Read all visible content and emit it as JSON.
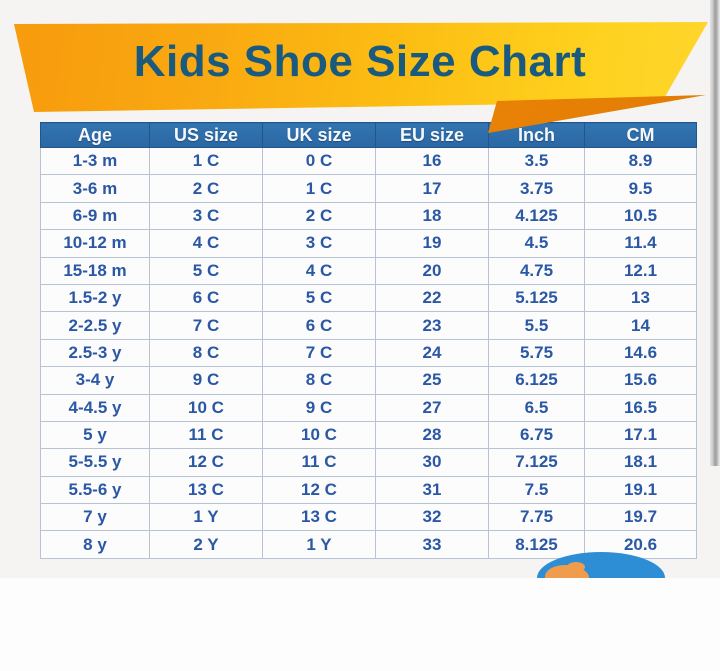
{
  "title": "Kids Shoe Size Chart",
  "table": {
    "headers": [
      "Age",
      "US size",
      "UK size",
      "EU size",
      "Inch",
      "CM"
    ],
    "rows": [
      [
        "1-3 m",
        "1 C",
        "0 C",
        "16",
        "3.5",
        "8.9"
      ],
      [
        "3-6 m",
        "2 C",
        "1 C",
        "17",
        "3.75",
        "9.5"
      ],
      [
        "6-9 m",
        "3 C",
        "2 C",
        "18",
        "4.125",
        "10.5"
      ],
      [
        "10-12 m",
        "4 C",
        "3 C",
        "19",
        "4.5",
        "11.4"
      ],
      [
        "15-18 m",
        "5 C",
        "4 C",
        "20",
        "4.75",
        "12.1"
      ],
      [
        "1.5-2 y",
        "6 C",
        "5 C",
        "22",
        "5.125",
        "13"
      ],
      [
        "2-2.5 y",
        "7 C",
        "6 C",
        "23",
        "5.5",
        "14"
      ],
      [
        "2.5-3 y",
        "8 C",
        "7 C",
        "24",
        "5.75",
        "14.6"
      ],
      [
        "3-4 y",
        "9 C",
        "8 C",
        "25",
        "6.125",
        "15.6"
      ],
      [
        "4-4.5 y",
        "10 C",
        "9 C",
        "27",
        "6.5",
        "16.5"
      ],
      [
        "5 y",
        "11 C",
        "10 C",
        "28",
        "6.75",
        "17.1"
      ],
      [
        "5-5.5 y",
        "12 C",
        "11 C",
        "30",
        "7.125",
        "18.1"
      ],
      [
        "5.5-6 y",
        "13 C",
        "12 C",
        "31",
        "7.5",
        "19.1"
      ],
      [
        "7 y",
        "1 Y",
        "13 C",
        "32",
        "7.75",
        "19.7"
      ],
      [
        "8 y",
        "2 Y",
        "1 Y",
        "33",
        "8.125",
        "20.6"
      ]
    ]
  },
  "chart_data": {
    "type": "table",
    "title": "Kids Shoe Size Chart",
    "columns": [
      "Age",
      "US size",
      "UK size",
      "EU size",
      "Inch",
      "CM"
    ],
    "rows": [
      [
        "1-3 m",
        "1 C",
        "0 C",
        16,
        3.5,
        8.9
      ],
      [
        "3-6 m",
        "2 C",
        "1 C",
        17,
        3.75,
        9.5
      ],
      [
        "6-9 m",
        "3 C",
        "2 C",
        18,
        4.125,
        10.5
      ],
      [
        "10-12 m",
        "4 C",
        "3 C",
        19,
        4.5,
        11.4
      ],
      [
        "15-18 m",
        "5 C",
        "4 C",
        20,
        4.75,
        12.1
      ],
      [
        "1.5-2 y",
        "6 C",
        "5 C",
        22,
        5.125,
        13
      ],
      [
        "2-2.5 y",
        "7 C",
        "6 C",
        23,
        5.5,
        14
      ],
      [
        "2.5-3 y",
        "8 C",
        "7 C",
        24,
        5.75,
        14.6
      ],
      [
        "3-4 y",
        "9 C",
        "8 C",
        25,
        6.125,
        15.6
      ],
      [
        "4-4.5 y",
        "10 C",
        "9 C",
        27,
        6.5,
        16.5
      ],
      [
        "5 y",
        "11 C",
        "10 C",
        28,
        6.75,
        17.1
      ],
      [
        "5-5.5 y",
        "12 C",
        "11 C",
        30,
        7.125,
        18.1
      ],
      [
        "5.5-6 y",
        "13 C",
        "12 C",
        31,
        7.5,
        19.1
      ],
      [
        "7 y",
        "1 Y",
        "13 C",
        32,
        7.75,
        19.7
      ],
      [
        "8 y",
        "2 Y",
        "1 Y",
        33,
        8.125,
        20.6
      ]
    ]
  },
  "colors": {
    "banner_orange_start": "#f79a0c",
    "banner_yellow_end": "#ffd62e",
    "banner_fold_orange": "#ea8406",
    "title_blue": "#1a5a7f",
    "header_blue": "#2d6da9",
    "cell_text_blue": "#2b58a4",
    "grid_line": "#b6c3d4",
    "peek_head_blue": "#2e8ed5",
    "peek_hair_orange": "#ef9c4d"
  }
}
